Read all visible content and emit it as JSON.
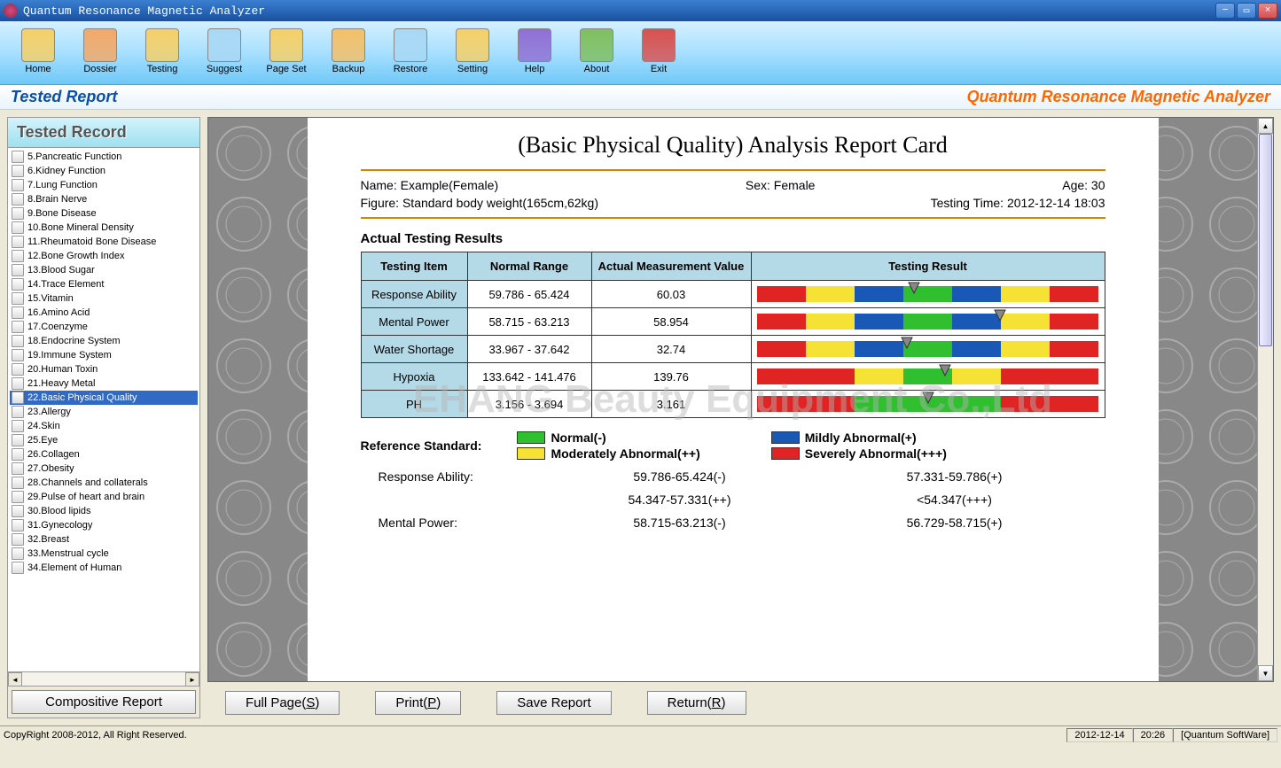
{
  "titlebar": {
    "title": "Quantum Resonance Magnetic Analyzer"
  },
  "toolbar": [
    {
      "label": "Home",
      "color": "#f4d068"
    },
    {
      "label": "Dossier",
      "color": "#f3a868"
    },
    {
      "label": "Testing",
      "color": "#f4d068"
    },
    {
      "label": "Suggest",
      "color": "#a8d8f4"
    },
    {
      "label": "Page Set",
      "color": "#f4d068"
    },
    {
      "label": "Backup",
      "color": "#f3c068"
    },
    {
      "label": "Restore",
      "color": "#a8d8f4"
    },
    {
      "label": "Setting",
      "color": "#f4d068"
    },
    {
      "label": "Help",
      "color": "#8f6fd4"
    },
    {
      "label": "About",
      "color": "#7fbf5f"
    },
    {
      "label": "Exit",
      "color": "#d85050"
    }
  ],
  "header": {
    "title": "Tested Report",
    "brand": "Quantum Resonance Magnetic Analyzer"
  },
  "sidebar": {
    "title": "Tested Record",
    "items": [
      "5.Pancreatic Function",
      "6.Kidney Function",
      "7.Lung Function",
      "8.Brain Nerve",
      "9.Bone Disease",
      "10.Bone Mineral Density",
      "11.Rheumatoid Bone Disease",
      "12.Bone Growth Index",
      "13.Blood Sugar",
      "14.Trace Element",
      "15.Vitamin",
      "16.Amino Acid",
      "17.Coenzyme",
      "18.Endocrine System",
      "19.Immune System",
      "20.Human Toxin",
      "21.Heavy Metal",
      "22.Basic Physical Quality",
      "23.Allergy",
      "24.Skin",
      "25.Eye",
      "26.Collagen",
      "27.Obesity",
      "28.Channels and collaterals",
      "29.Pulse of heart and brain",
      "30.Blood lipids",
      "31.Gynecology",
      "32.Breast",
      "33.Menstrual cycle",
      "34.Element of Human"
    ],
    "selected_index": 17,
    "compositive": "Compositive Report"
  },
  "report": {
    "title": "(Basic Physical Quality) Analysis Report Card",
    "name": "Name: Example(Female)",
    "sex": "Sex: Female",
    "age": "Age: 30",
    "figure": "Figure: Standard body weight(165cm,62kg)",
    "testing_time": "Testing Time: 2012-12-14 18:03",
    "section_title": "Actual Testing Results",
    "columns": [
      "Testing Item",
      "Normal Range",
      "Actual Measurement Value",
      "Testing Result"
    ],
    "rows": [
      {
        "item": "Response Ability",
        "range": "59.786 - 65.424",
        "value": "60.03",
        "pointer": 0.46,
        "pattern": "banded"
      },
      {
        "item": "Mental Power",
        "range": "58.715 - 63.213",
        "value": "58.954",
        "pointer": 0.71,
        "pattern": "banded"
      },
      {
        "item": "Water Shortage",
        "range": "33.967 - 37.642",
        "value": "32.74",
        "pointer": 0.44,
        "pattern": "banded"
      },
      {
        "item": "Hypoxia",
        "range": "133.642 - 141.476",
        "value": "139.76",
        "pointer": 0.55,
        "pattern": "simple"
      },
      {
        "item": "PH",
        "range": "3.156 - 3.694",
        "value": "3.161",
        "pointer": 0.5,
        "pattern": "center"
      }
    ],
    "colors": {
      "normal": "#2fbf2f",
      "mild": "#1a58b5",
      "moderate": "#f5e234",
      "severe": "#e02424"
    },
    "legend_label": "Reference Standard:",
    "legend": [
      {
        "color": "#2fbf2f",
        "text": "Normal(-)"
      },
      {
        "color": "#1a58b5",
        "text": "Mildly Abnormal(+)"
      },
      {
        "color": "#f5e234",
        "text": "Moderately Abnormal(++)"
      },
      {
        "color": "#e02424",
        "text": "Severely Abnormal(+++)"
      }
    ],
    "refs": [
      {
        "label": "Response Ability:",
        "v1": "59.786-65.424(-)",
        "v2": "57.331-59.786(+)"
      },
      {
        "label": "",
        "v1": "54.347-57.331(++)",
        "v2": "<54.347(+++)"
      },
      {
        "label": "Mental Power:",
        "v1": "58.715-63.213(-)",
        "v2": "56.729-58.715(+)"
      }
    ],
    "watermark": "EHANG Beauty Equipment Co.,Ltd"
  },
  "buttons": {
    "fullpage": "Full Page(",
    "fullpage_k": "S",
    "print": "Print(",
    "print_k": "P",
    "save": "Save Report",
    "return": "Return(",
    "return_k": "R"
  },
  "statusbar": {
    "copyright": "CopyRight 2008-2012, All Right Reserved.",
    "date": "2012-12-14",
    "time": "20:26",
    "software": "[Quantum SoftWare]"
  }
}
